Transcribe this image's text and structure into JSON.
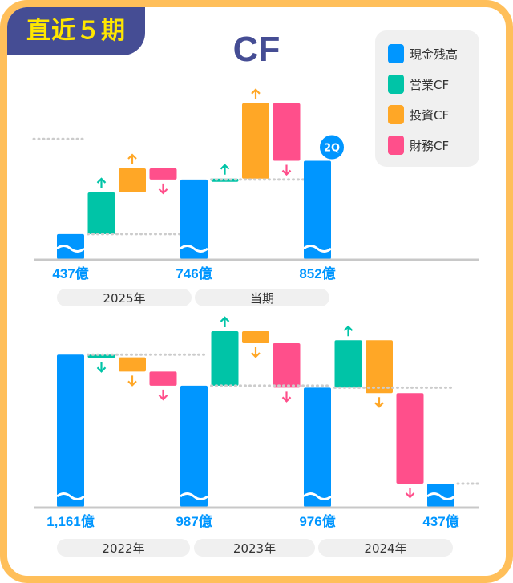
{
  "badge": "直近５期",
  "title": "CF",
  "legend": [
    {
      "label": "現金残高",
      "color": "#0096ff"
    },
    {
      "label": "営業CF",
      "color": "#00c4a7"
    },
    {
      "label": "投資CF",
      "color": "#ffa726"
    },
    {
      "label": "財務CF",
      "color": "#ff4f8b"
    }
  ],
  "chart_data": [
    {
      "type": "waterfall",
      "unit": "億",
      "periods": [
        {
          "label": "2025年",
          "operating": 236,
          "investing": 136,
          "financing": -63
        },
        {
          "label": "当期",
          "operating": 5,
          "investing": 427,
          "financing": -326
        }
      ],
      "cash": [
        437,
        746,
        852
      ],
      "cash_labels": [
        "437億",
        "746億",
        "852億"
      ],
      "badge_on_last": "2Q"
    },
    {
      "type": "waterfall",
      "unit": "億",
      "periods": [
        {
          "label": "2022年",
          "operating": -15,
          "investing": -80,
          "financing": -79
        },
        {
          "label": "2023年",
          "operating": 306,
          "investing": -68,
          "financing": -249
        },
        {
          "label": "2024年",
          "operating": 266,
          "investing": -297,
          "financing": -508
        }
      ],
      "cash": [
        1161,
        987,
        976,
        437
      ],
      "cash_labels": [
        "1,161億",
        "987億",
        "976億",
        "437億"
      ]
    }
  ]
}
